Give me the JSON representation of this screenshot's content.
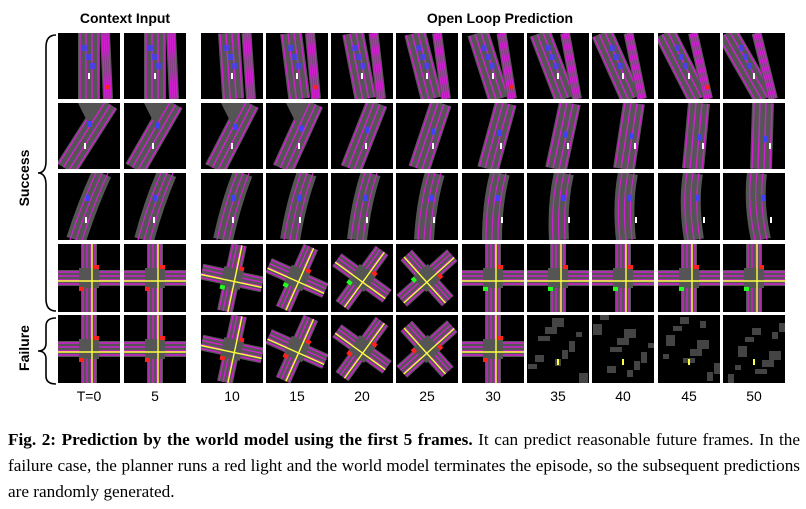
{
  "headers": {
    "context": "Context Input",
    "open_loop": "Open Loop Prediction"
  },
  "side_labels": {
    "success": "Success",
    "failure": "Failure"
  },
  "time_labels": [
    "T=0",
    "5",
    "10",
    "15",
    "20",
    "25",
    "30",
    "35",
    "40",
    "45",
    "50"
  ],
  "caption": {
    "prefix": "Fig. 2: Prediction by the world model using the first 5 frames.",
    "body": " It can predict reasonable future frames. In the failure case, the planner runs a red light and the world model terminates the episode, so the subsequent predictions are randomly generated."
  },
  "colors": {
    "road": "#555555",
    "lane": "#d020d0",
    "ego": "#ffffff",
    "vehicle": "#4040ff",
    "red_light": "#ff2020",
    "green_light": "#20ff20",
    "center_line": "#ffff40"
  },
  "rows": [
    {
      "group": "success",
      "scene": "straight-road"
    },
    {
      "group": "success",
      "scene": "diagonal-road"
    },
    {
      "group": "success",
      "scene": "curving-road"
    },
    {
      "group": "success",
      "scene": "intersection"
    },
    {
      "group": "failure",
      "scene": "intersection-red-light"
    }
  ]
}
